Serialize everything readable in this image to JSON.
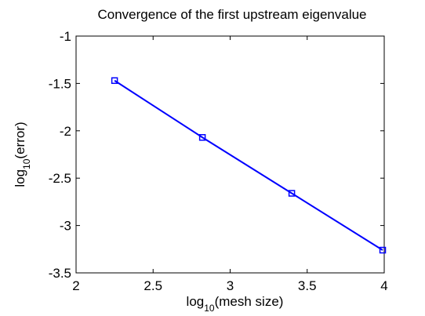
{
  "chart_data": {
    "type": "line",
    "title": "Convergence of the first upstream eigenvalue",
    "xlabel": [
      "log",
      "10",
      "(mesh size)"
    ],
    "ylabel": [
      "log",
      "10",
      "(error)"
    ],
    "x": [
      2.25,
      2.82,
      3.4,
      3.99
    ],
    "series": [
      {
        "color": "#0000ff",
        "values": [
          -1.47,
          -2.07,
          -2.66,
          -3.26
        ]
      }
    ],
    "xlim": [
      2,
      4
    ],
    "xticks": [
      2,
      2.5,
      3,
      3.5,
      4
    ],
    "ylim": [
      -3.5,
      -1
    ],
    "yticks": [
      -1,
      -1.5,
      -2,
      -2.5,
      -3,
      -3.5
    ],
    "grid": false
  }
}
